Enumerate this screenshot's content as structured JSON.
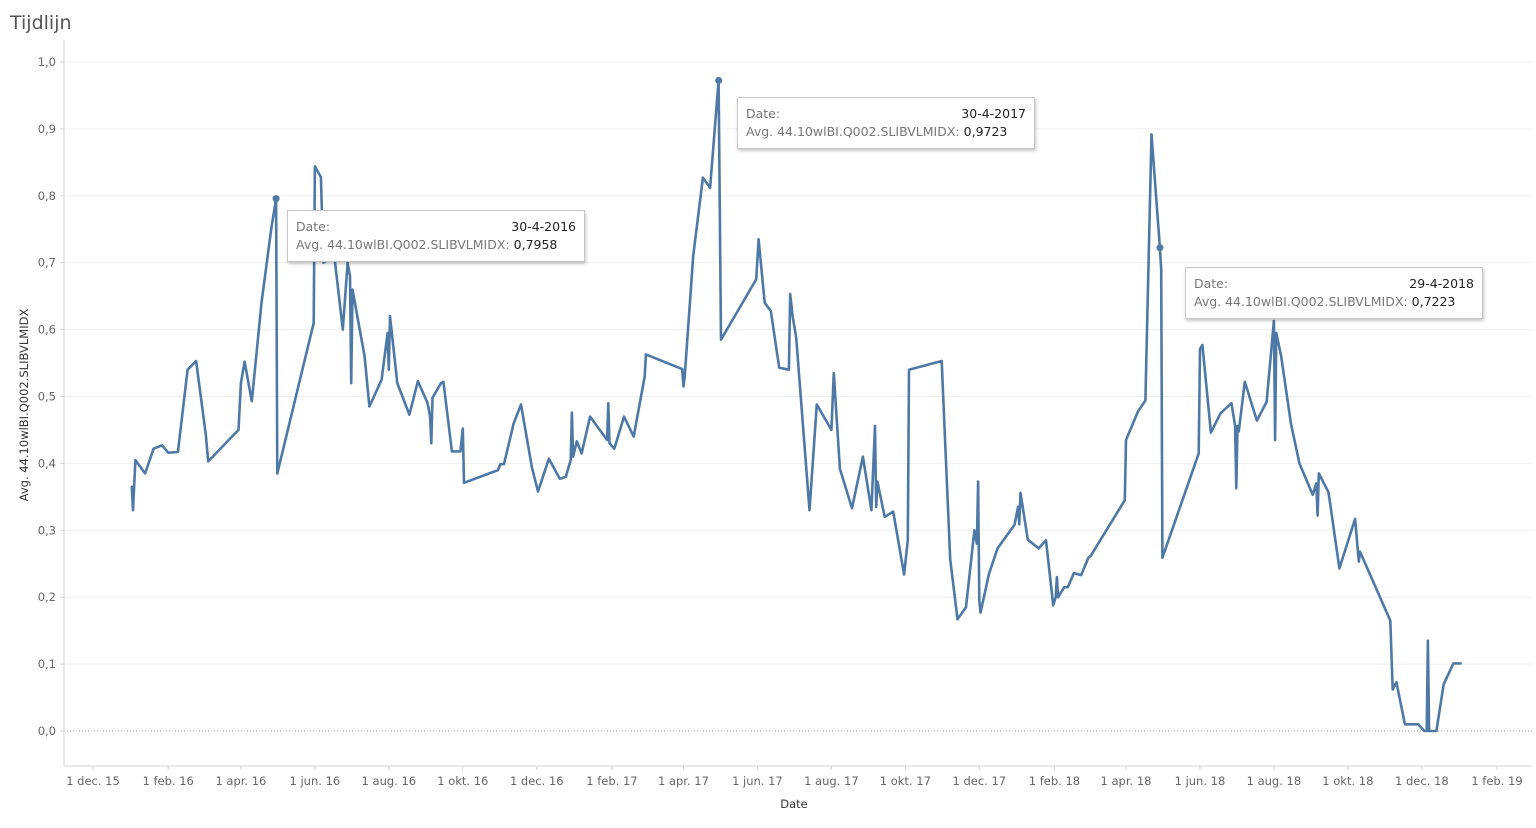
{
  "title": "Tijdlijn",
  "chart_data": {
    "type": "line",
    "xlabel": "Date",
    "ylabel": "Avg. 44.10wlBI.Q002.SLIBVLMIDX",
    "ylim": [
      -0.05,
      1.0
    ],
    "xlim": [
      "2015-11-20",
      "2019-02-12"
    ],
    "yticks": [
      "0,0",
      "0,1",
      "0,2",
      "0,3",
      "0,4",
      "0,5",
      "0,6",
      "0,7",
      "0,8",
      "0,9",
      "1,0"
    ],
    "ytick_values": [
      0,
      0.1,
      0.2,
      0.3,
      0.4,
      0.5,
      0.6,
      0.7,
      0.8,
      0.9,
      1.0
    ],
    "xticks": [
      {
        "date": "2015-12-01",
        "label": "1 dec. 15"
      },
      {
        "date": "2016-02-01",
        "label": "1 feb. 16"
      },
      {
        "date": "2016-04-01",
        "label": "1 apr. 16"
      },
      {
        "date": "2016-06-01",
        "label": "1 jun. 16"
      },
      {
        "date": "2016-08-01",
        "label": "1 aug. 16"
      },
      {
        "date": "2016-10-01",
        "label": "1 okt. 16"
      },
      {
        "date": "2016-12-01",
        "label": "1 dec. 16"
      },
      {
        "date": "2017-02-01",
        "label": "1 feb. 17"
      },
      {
        "date": "2017-04-01",
        "label": "1 apr. 17"
      },
      {
        "date": "2017-06-01",
        "label": "1 jun. 17"
      },
      {
        "date": "2017-08-01",
        "label": "1 aug. 17"
      },
      {
        "date": "2017-10-01",
        "label": "1 okt. 17"
      },
      {
        "date": "2017-12-01",
        "label": "1 dec. 17"
      },
      {
        "date": "2018-02-01",
        "label": "1 feb. 18"
      },
      {
        "date": "2018-04-01",
        "label": "1 apr. 18"
      },
      {
        "date": "2018-06-01",
        "label": "1 jun. 18"
      },
      {
        "date": "2018-08-01",
        "label": "1 aug. 18"
      },
      {
        "date": "2018-10-01",
        "label": "1 okt. 18"
      },
      {
        "date": "2018-12-01",
        "label": "1 dec. 18"
      },
      {
        "date": "2019-02-01",
        "label": "1 feb. 19"
      }
    ],
    "grid": true,
    "zero_line": true,
    "line_color": "#4e79a7",
    "series": [
      {
        "points": [
          [
            "2016-01-02",
            0.365
          ],
          [
            "2016-01-03",
            0.33
          ],
          [
            "2016-01-05",
            0.405
          ],
          [
            "2016-01-13",
            0.385
          ],
          [
            "2016-01-20",
            0.422
          ],
          [
            "2016-01-27",
            0.427
          ],
          [
            "2016-02-01",
            0.416
          ],
          [
            "2016-02-09",
            0.417
          ],
          [
            "2016-02-17",
            0.54
          ],
          [
            "2016-02-24",
            0.553
          ],
          [
            "2016-03-03",
            0.443
          ],
          [
            "2016-03-05",
            0.403
          ],
          [
            "2016-03-30",
            0.45
          ],
          [
            "2016-04-01",
            0.52
          ],
          [
            "2016-04-04",
            0.552
          ],
          [
            "2016-04-10",
            0.493
          ],
          [
            "2016-04-18",
            0.64
          ],
          [
            "2016-04-26",
            0.75
          ],
          [
            "2016-04-30",
            0.7958
          ],
          [
            "2016-05-01",
            0.385
          ],
          [
            "2016-05-31",
            0.61
          ],
          [
            "2016-06-01",
            0.844
          ],
          [
            "2016-06-06",
            0.828
          ],
          [
            "2016-06-08",
            0.7
          ],
          [
            "2016-06-17",
            0.71
          ],
          [
            "2016-06-24",
            0.6
          ],
          [
            "2016-06-28",
            0.7
          ],
          [
            "2016-06-30",
            0.68
          ],
          [
            "2016-07-01",
            0.52
          ],
          [
            "2016-07-02",
            0.66
          ],
          [
            "2016-07-12",
            0.56
          ],
          [
            "2016-07-16",
            0.485
          ],
          [
            "2016-07-26",
            0.525
          ],
          [
            "2016-07-31",
            0.595
          ],
          [
            "2016-08-01",
            0.54
          ],
          [
            "2016-08-02",
            0.62
          ],
          [
            "2016-08-08",
            0.52
          ],
          [
            "2016-08-18",
            0.473
          ],
          [
            "2016-08-25",
            0.523
          ],
          [
            "2016-09-02",
            0.49
          ],
          [
            "2016-09-04",
            0.47
          ],
          [
            "2016-09-05",
            0.43
          ],
          [
            "2016-09-06",
            0.498
          ],
          [
            "2016-09-13",
            0.52
          ],
          [
            "2016-09-15",
            0.522
          ],
          [
            "2016-09-22",
            0.418
          ],
          [
            "2016-09-29",
            0.418
          ],
          [
            "2016-10-01",
            0.452
          ],
          [
            "2016-10-02",
            0.371
          ],
          [
            "2016-10-30",
            0.39
          ],
          [
            "2016-11-01",
            0.399
          ],
          [
            "2016-11-04",
            0.399
          ],
          [
            "2016-11-12",
            0.46
          ],
          [
            "2016-11-18",
            0.488
          ],
          [
            "2016-11-27",
            0.394
          ],
          [
            "2016-12-02",
            0.358
          ],
          [
            "2016-12-11",
            0.407
          ],
          [
            "2016-12-20",
            0.377
          ],
          [
            "2016-12-25",
            0.38
          ],
          [
            "2016-12-29",
            0.405
          ],
          [
            "2016-12-30",
            0.476
          ],
          [
            "2016-12-31",
            0.41
          ],
          [
            "2017-01-03",
            0.433
          ],
          [
            "2017-01-07",
            0.415
          ],
          [
            "2017-01-14",
            0.47
          ],
          [
            "2017-01-28",
            0.435
          ],
          [
            "2017-01-29",
            0.49
          ],
          [
            "2017-01-30",
            0.43
          ],
          [
            "2017-02-03",
            0.422
          ],
          [
            "2017-02-11",
            0.47
          ],
          [
            "2017-02-19",
            0.44
          ],
          [
            "2017-02-28",
            0.53
          ],
          [
            "2017-03-01",
            0.563
          ],
          [
            "2017-03-31",
            0.541
          ],
          [
            "2017-04-01",
            0.515
          ],
          [
            "2017-04-02",
            0.53
          ],
          [
            "2017-04-09",
            0.71
          ],
          [
            "2017-04-17",
            0.827
          ],
          [
            "2017-04-23",
            0.812
          ],
          [
            "2017-04-30",
            0.9723
          ],
          [
            "2017-05-02",
            0.585
          ],
          [
            "2017-05-31",
            0.675
          ],
          [
            "2017-06-02",
            0.735
          ],
          [
            "2017-06-07",
            0.64
          ],
          [
            "2017-06-12",
            0.628
          ],
          [
            "2017-06-19",
            0.543
          ],
          [
            "2017-06-27",
            0.54
          ],
          [
            "2017-06-28",
            0.653
          ],
          [
            "2017-06-30",
            0.62
          ],
          [
            "2017-07-03",
            0.588
          ],
          [
            "2017-07-14",
            0.33
          ],
          [
            "2017-07-20",
            0.488
          ],
          [
            "2017-08-01",
            0.45
          ],
          [
            "2017-08-03",
            0.535
          ],
          [
            "2017-08-08",
            0.392
          ],
          [
            "2017-08-18",
            0.333
          ],
          [
            "2017-08-27",
            0.41
          ],
          [
            "2017-09-03",
            0.33
          ],
          [
            "2017-09-06",
            0.456
          ],
          [
            "2017-09-07",
            0.335
          ],
          [
            "2017-09-08",
            0.373
          ],
          [
            "2017-09-14",
            0.32
          ],
          [
            "2017-09-21",
            0.328
          ],
          [
            "2017-09-30",
            0.234
          ],
          [
            "2017-10-03",
            0.285
          ],
          [
            "2017-10-04",
            0.54
          ],
          [
            "2017-10-31",
            0.553
          ],
          [
            "2017-11-01",
            0.51
          ],
          [
            "2017-11-07",
            0.257
          ],
          [
            "2017-11-13",
            0.167
          ],
          [
            "2017-11-20",
            0.185
          ],
          [
            "2017-11-27",
            0.3
          ],
          [
            "2017-11-29",
            0.28
          ],
          [
            "2017-11-30",
            0.373
          ],
          [
            "2017-12-01",
            0.195
          ],
          [
            "2017-12-02",
            0.177
          ],
          [
            "2017-12-09",
            0.235
          ],
          [
            "2017-12-16",
            0.273
          ],
          [
            "2017-12-30",
            0.308
          ],
          [
            "2018-01-02",
            0.335
          ],
          [
            "2018-01-03",
            0.309
          ],
          [
            "2018-01-04",
            0.356
          ],
          [
            "2018-01-10",
            0.286
          ],
          [
            "2018-01-19",
            0.273
          ],
          [
            "2018-01-25",
            0.285
          ],
          [
            "2018-01-31",
            0.188
          ],
          [
            "2018-02-02",
            0.2
          ],
          [
            "2018-02-03",
            0.23
          ],
          [
            "2018-02-04",
            0.2
          ],
          [
            "2018-02-09",
            0.215
          ],
          [
            "2018-02-12",
            0.215
          ],
          [
            "2018-02-17",
            0.236
          ],
          [
            "2018-02-23",
            0.233
          ],
          [
            "2018-03-01",
            0.259
          ],
          [
            "2018-03-03",
            0.262
          ],
          [
            "2018-03-31",
            0.345
          ],
          [
            "2018-04-01",
            0.435
          ],
          [
            "2018-04-11",
            0.478
          ],
          [
            "2018-04-17",
            0.494
          ],
          [
            "2018-04-22",
            0.892
          ],
          [
            "2018-04-29",
            0.7223
          ],
          [
            "2018-04-30",
            0.69
          ],
          [
            "2018-05-01",
            0.259
          ],
          [
            "2018-05-31",
            0.415
          ],
          [
            "2018-06-01",
            0.571
          ],
          [
            "2018-06-03",
            0.577
          ],
          [
            "2018-06-10",
            0.446
          ],
          [
            "2018-06-18",
            0.475
          ],
          [
            "2018-06-27",
            0.49
          ],
          [
            "2018-06-30",
            0.456
          ],
          [
            "2018-07-01",
            0.363
          ],
          [
            "2018-07-02",
            0.456
          ],
          [
            "2018-07-03",
            0.448
          ],
          [
            "2018-07-08",
            0.522
          ],
          [
            "2018-07-18",
            0.464
          ],
          [
            "2018-07-26",
            0.492
          ],
          [
            "2018-08-01",
            0.613
          ],
          [
            "2018-08-02",
            0.435
          ],
          [
            "2018-08-03",
            0.595
          ],
          [
            "2018-08-07",
            0.56
          ],
          [
            "2018-08-15",
            0.46
          ],
          [
            "2018-08-22",
            0.4
          ],
          [
            "2018-09-02",
            0.353
          ],
          [
            "2018-09-05",
            0.37
          ],
          [
            "2018-09-06",
            0.322
          ],
          [
            "2018-09-07",
            0.385
          ],
          [
            "2018-09-15",
            0.357
          ],
          [
            "2018-09-24",
            0.243
          ],
          [
            "2018-10-07",
            0.317
          ],
          [
            "2018-10-10",
            0.253
          ],
          [
            "2018-10-11",
            0.268
          ],
          [
            "2018-11-05",
            0.165
          ],
          [
            "2018-11-07",
            0.062
          ],
          [
            "2018-11-10",
            0.073
          ],
          [
            "2018-11-17",
            0.01
          ],
          [
            "2018-11-28",
            0.01
          ],
          [
            "2018-12-03",
            0.0
          ],
          [
            "2018-12-05",
            0.0
          ],
          [
            "2018-12-06",
            0.135
          ],
          [
            "2018-12-07",
            0.0
          ],
          [
            "2018-12-13",
            0.0
          ],
          [
            "2018-12-19",
            0.07
          ],
          [
            "2018-12-27",
            0.101
          ],
          [
            "2019-01-02",
            0.101
          ]
        ]
      }
    ],
    "markers": [
      {
        "date": "2016-04-30",
        "value": 0.7958
      },
      {
        "date": "2017-04-30",
        "value": 0.9723
      },
      {
        "date": "2018-04-29",
        "value": 0.7223
      }
    ],
    "tooltips": [
      {
        "date_label": "Date:",
        "date_value": "30-4-2016",
        "measure_label": "Avg. 44.10wlBI.Q002.SLIBVLMIDX:",
        "measure_value": "0,7958"
      },
      {
        "date_label": "Date:",
        "date_value": "30-4-2017",
        "measure_label": "Avg. 44.10wlBI.Q002.SLIBVLMIDX:",
        "measure_value": "0,9723"
      },
      {
        "date_label": "Date:",
        "date_value": "29-4-2018",
        "measure_label": "Avg. 44.10wlBI.Q002.SLIBVLMIDX:",
        "measure_value": "0,7223"
      }
    ]
  }
}
